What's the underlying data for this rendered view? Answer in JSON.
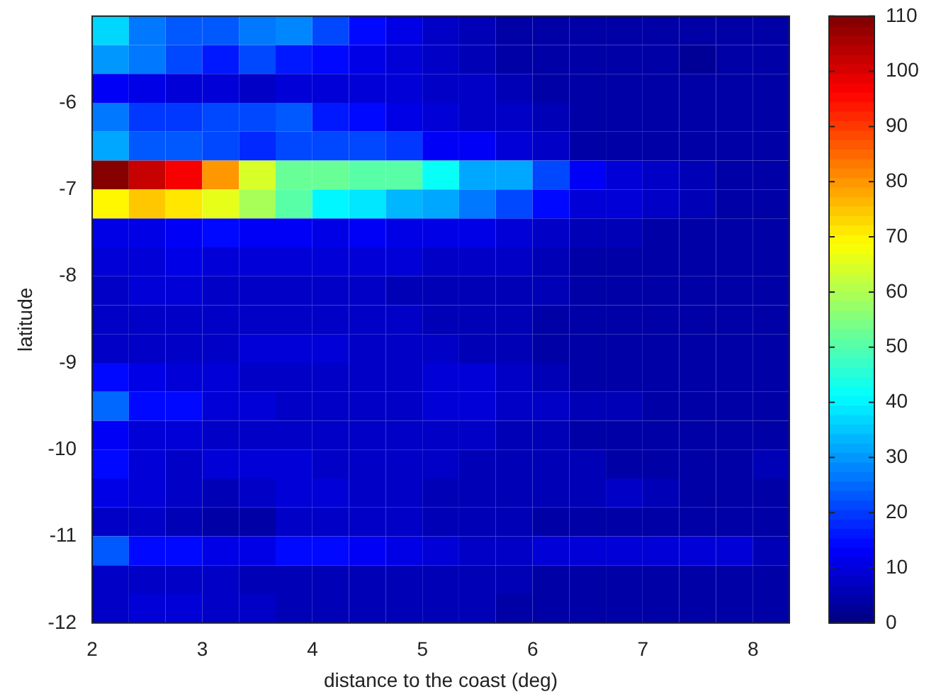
{
  "chart_data": {
    "type": "heatmap",
    "xlabel": "distance to the coast (deg)",
    "ylabel": "latitude",
    "xlim": [
      2,
      8.33
    ],
    "ylim": [
      -12,
      -5
    ],
    "xticks": [
      2,
      3,
      4,
      5,
      6,
      7,
      8
    ],
    "yticks": [
      -12,
      -11,
      -10,
      -9,
      -8,
      -7,
      -6
    ],
    "clim": [
      0,
      110
    ],
    "cticks": [
      0,
      10,
      20,
      30,
      40,
      50,
      60,
      70,
      80,
      90,
      100,
      110
    ],
    "cells": [
      [
        37,
        27,
        23,
        24,
        27,
        28,
        22,
        14,
        12,
        8,
        6,
        5,
        5,
        4,
        4,
        4,
        4,
        5,
        4
      ],
      [
        30,
        27,
        21,
        17,
        21,
        17,
        14,
        12,
        10,
        8,
        6,
        5,
        5,
        4,
        4,
        4,
        3,
        4,
        4
      ],
      [
        13,
        11,
        10,
        9,
        8,
        9,
        9,
        9,
        9,
        8,
        7,
        6,
        5,
        4,
        4,
        4,
        5,
        4,
        4
      ],
      [
        26,
        20,
        19,
        22,
        22,
        23,
        17,
        14,
        11,
        9,
        8,
        7,
        6,
        5,
        4,
        4,
        4,
        5,
        4
      ],
      [
        32,
        24,
        23,
        22,
        18,
        22,
        22,
        22,
        19,
        13,
        13,
        9,
        7,
        5,
        4,
        4,
        4,
        4,
        4
      ],
      [
        110,
        103,
        97,
        80,
        64,
        52,
        52,
        51,
        51,
        42,
        32,
        31,
        22,
        13,
        10,
        8,
        6,
        5,
        5
      ],
      [
        69,
        74,
        72,
        66,
        60,
        51,
        41,
        38,
        34,
        32,
        27,
        22,
        15,
        10,
        9,
        7,
        6,
        5,
        5
      ],
      [
        12,
        12,
        13,
        14,
        13,
        13,
        12,
        13,
        12,
        12,
        11,
        10,
        8,
        6,
        6,
        5,
        5,
        5,
        5
      ],
      [
        10,
        10,
        11,
        10,
        10,
        9,
        9,
        9,
        9,
        8,
        8,
        7,
        6,
        5,
        5,
        5,
        5,
        5,
        5
      ],
      [
        8,
        9,
        9,
        8,
        7,
        7,
        7,
        7,
        6,
        6,
        6,
        6,
        6,
        5,
        5,
        5,
        4,
        4,
        4
      ],
      [
        7,
        7,
        7,
        8,
        8,
        7,
        7,
        7,
        7,
        6,
        6,
        6,
        5,
        5,
        5,
        4,
        4,
        4,
        4
      ],
      [
        7,
        7,
        7,
        8,
        9,
        10,
        9,
        8,
        7,
        7,
        6,
        6,
        5,
        5,
        5,
        5,
        4,
        4,
        4
      ],
      [
        14,
        11,
        9,
        9,
        8,
        8,
        8,
        8,
        8,
        10,
        10,
        8,
        6,
        5,
        5,
        5,
        5,
        4,
        4
      ],
      [
        25,
        15,
        14,
        10,
        9,
        8,
        8,
        8,
        8,
        9,
        9,
        8,
        7,
        6,
        6,
        5,
        5,
        5,
        4
      ],
      [
        13,
        10,
        9,
        8,
        7,
        7,
        8,
        8,
        7,
        7,
        7,
        6,
        6,
        5,
        5,
        5,
        5,
        4,
        4
      ],
      [
        14,
        10,
        8,
        10,
        10,
        9,
        8,
        8,
        7,
        7,
        6,
        6,
        6,
        6,
        5,
        5,
        5,
        5,
        6
      ],
      [
        11,
        10,
        8,
        6,
        7,
        9,
        9,
        8,
        7,
        6,
        6,
        6,
        6,
        6,
        7,
        6,
        5,
        5,
        5
      ],
      [
        8,
        7,
        6,
        5,
        5,
        7,
        7,
        7,
        7,
        6,
        6,
        6,
        5,
        5,
        5,
        5,
        5,
        5,
        5
      ],
      [
        24,
        15,
        14,
        12,
        11,
        14,
        14,
        13,
        12,
        9,
        8,
        8,
        9,
        10,
        10,
        10,
        10,
        9,
        6
      ],
      [
        7,
        8,
        7,
        7,
        6,
        6,
        6,
        6,
        6,
        6,
        6,
        6,
        5,
        5,
        5,
        5,
        5,
        5,
        5
      ],
      [
        8,
        10,
        10,
        7,
        7,
        6,
        6,
        6,
        6,
        6,
        6,
        5,
        5,
        5,
        5,
        5,
        5,
        5,
        5
      ]
    ]
  }
}
